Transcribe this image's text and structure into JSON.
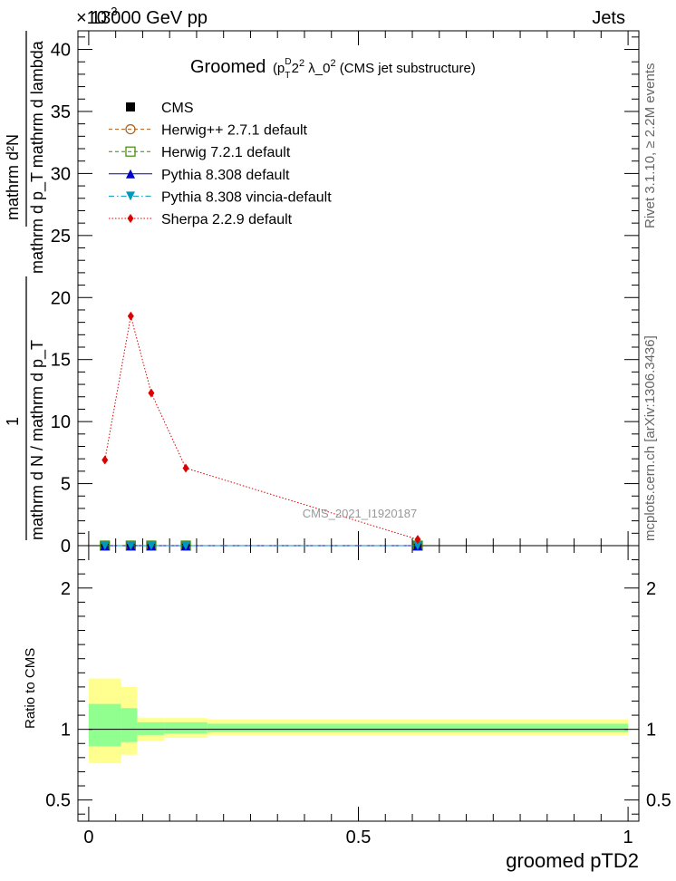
{
  "header": {
    "energy_label": "13000 GeV pp",
    "exponent_label": "×10",
    "exponent_sup": "-3",
    "category_label": "Jets"
  },
  "title": {
    "prefix": "Groomed ",
    "math": "(p",
    "sub": "T",
    "sup": "D",
    "sup2": "2",
    "rest": " λ_0",
    "rest_sup": "2",
    "suffix": " (CMS jet substructure)"
  },
  "side_labels": {
    "rivet": "Rivet 3.1.10, ≥ 2.2M events",
    "mcplots": "mcplots.cern.ch [arXiv:1306.3436]"
  },
  "watermark": "CMS_2021_I1920187",
  "ylabel_main": {
    "numerator": "mathrm d²N",
    "denominator": "mathrm d p_T mathrm d lambda",
    "one": "1",
    "lower": "mathrm d N / mathrm d p_T"
  },
  "ylabel_ratio": "Ratio to CMS",
  "xlabel": "groomed pTD2",
  "legend": [
    {
      "label": "CMS",
      "marker": "filled-square",
      "color": "#000000",
      "line": "none"
    },
    {
      "label": "Herwig++ 2.7.1 default",
      "marker": "open-circle",
      "color": "#b05a14",
      "line": "dashed"
    },
    {
      "label": "Herwig 7.2.1 default",
      "marker": "open-square",
      "color": "#3a8a00",
      "line": "dashed"
    },
    {
      "label": "Pythia 8.308 default",
      "marker": "filled-triangle-up",
      "color": "#0000cc",
      "line": "solid"
    },
    {
      "label": "Pythia 8.308 vincia-default",
      "marker": "filled-triangle-down",
      "color": "#0099bb",
      "line": "dashdot"
    },
    {
      "label": "Sherpa 2.2.9 default",
      "marker": "filled-diamond",
      "color": "#dd0000",
      "line": "dotted"
    }
  ],
  "chart_data": {
    "type": "line",
    "x": [
      0.03,
      0.078,
      0.116,
      0.18,
      0.61
    ],
    "bin_edges": [
      0.0,
      0.06,
      0.09,
      0.14,
      0.22,
      1.0
    ],
    "series": [
      {
        "name": "CMS",
        "values": [
          0.0,
          0.0,
          0.0,
          0.0,
          0.0
        ]
      },
      {
        "name": "Herwig++ 2.7.1 default",
        "values": [
          0.0,
          0.0,
          0.0,
          0.0,
          0.0
        ]
      },
      {
        "name": "Herwig 7.2.1 default",
        "values": [
          0.0,
          0.0,
          0.0,
          0.0,
          0.0
        ]
      },
      {
        "name": "Pythia 8.308 default",
        "values": [
          0.0,
          0.0,
          0.0,
          0.0,
          0.0
        ]
      },
      {
        "name": "Pythia 8.308 vincia-default",
        "values": [
          0.0,
          0.0,
          0.0,
          0.0,
          0.0
        ]
      },
      {
        "name": "Sherpa 2.2.9 default",
        "values": [
          6.9,
          18.5,
          12.3,
          6.25,
          0.5
        ]
      }
    ],
    "xlim": [
      -0.02,
      1.02
    ],
    "ylim": [
      0,
      41.5
    ],
    "yticks": [
      0,
      5,
      10,
      15,
      20,
      25,
      30,
      35,
      40
    ],
    "xticks": [
      0,
      0.5,
      1
    ],
    "xtick_labels": [
      "0",
      "0.5",
      "1"
    ],
    "ratio": {
      "ylim": [
        0.35,
        2.3
      ],
      "yticks": [
        0.5,
        1,
        2
      ],
      "ytick_labels": [
        "0.5",
        "1",
        "2"
      ],
      "band_inner": [
        [
          0.88,
          1.18
        ],
        [
          0.91,
          1.15
        ],
        [
          0.96,
          1.05
        ],
        [
          0.97,
          1.05
        ],
        [
          0.98,
          1.04
        ]
      ],
      "band_outer": [
        [
          0.76,
          1.36
        ],
        [
          0.82,
          1.3
        ],
        [
          0.92,
          1.08
        ],
        [
          0.94,
          1.08
        ],
        [
          0.96,
          1.07
        ]
      ],
      "band_colors": {
        "inner": "#90ff90",
        "outer": "#ffff90"
      }
    }
  }
}
